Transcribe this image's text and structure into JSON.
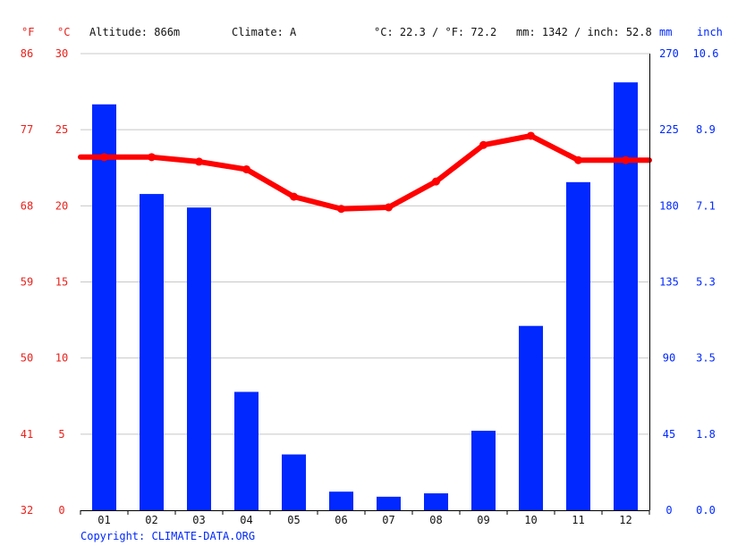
{
  "header": {
    "altitude": "Altitude: 866m",
    "climate": "Climate: A",
    "temp_summary": "°C: 22.3 / °F: 72.2",
    "precip_summary": "mm: 1342 / inch: 52.8"
  },
  "axis_units": {
    "fahrenheit": "°F",
    "celsius": "°C",
    "mm": "mm",
    "inch": "inch"
  },
  "copyright": "Copyright: CLIMATE-DATA.ORG",
  "colors": {
    "precip_bar": "#0028ff",
    "temp_line": "#ff0000",
    "temp_axis": "#e8211b",
    "precip_axis": "#0028ff",
    "grid": "#c8c8c8"
  },
  "chart_data": {
    "type": "bar",
    "categories": [
      "01",
      "02",
      "03",
      "04",
      "05",
      "06",
      "07",
      "08",
      "09",
      "10",
      "11",
      "12"
    ],
    "series": [
      {
        "kind": "bar",
        "axis": "right",
        "unit": "mm",
        "values": [
          240,
          187,
          179,
          70,
          33,
          11,
          8,
          10,
          47,
          109,
          194,
          253
        ]
      },
      {
        "kind": "line",
        "axis": "left",
        "unit": "°C",
        "values": [
          23.2,
          23.2,
          22.9,
          22.4,
          20.6,
          19.8,
          19.9,
          21.6,
          24.0,
          24.6,
          23.0,
          23.0
        ]
      }
    ],
    "left_axis": {
      "ylim": [
        0,
        30
      ],
      "celsius_ticks": [
        "30",
        "25",
        "20",
        "15",
        "10",
        "5",
        "0"
      ],
      "fahrenheit_ticks": [
        "86",
        "77",
        "68",
        "59",
        "50",
        "41",
        "32"
      ]
    },
    "right_axis": {
      "ylim": [
        0,
        270
      ],
      "mm_ticks": [
        "270",
        "225",
        "180",
        "135",
        "90",
        "45",
        "0"
      ],
      "inch_ticks": [
        "10.6",
        "8.9",
        "7.1",
        "5.3",
        "3.5",
        "1.8",
        "0.0"
      ]
    },
    "grid": true
  }
}
